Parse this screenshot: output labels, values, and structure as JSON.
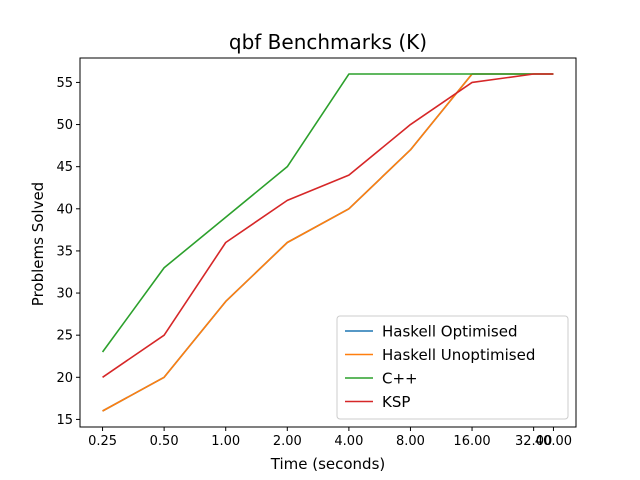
{
  "chart_data": {
    "type": "line",
    "title": "qbf Benchmarks (K)",
    "xlabel": "Time (seconds)",
    "ylabel": "Problems Solved",
    "x_scale": "log2",
    "x": [
      0.25,
      0.5,
      1.0,
      2.0,
      4.0,
      8.0,
      16.0,
      32.0,
      40.0
    ],
    "x_tick_labels": [
      "0.25",
      "0.50",
      "1.00",
      "2.00",
      "4.00",
      "8.00",
      "16.00",
      "32.00",
      "40.00"
    ],
    "y_ticks": [
      15,
      20,
      25,
      30,
      35,
      40,
      45,
      50,
      55
    ],
    "ylim": [
      14.1,
      57.9
    ],
    "grid": false,
    "legend_position": "lower-right",
    "series": [
      {
        "name": "Haskell Optimised",
        "color": "#1f77b4",
        "values": [
          16,
          20,
          29,
          36,
          40,
          47,
          56,
          56,
          56
        ]
      },
      {
        "name": "Haskell Unoptimised",
        "color": "#ff7f0e",
        "values": [
          16,
          20,
          29,
          36,
          40,
          47,
          56,
          56,
          56
        ]
      },
      {
        "name": "C++",
        "color": "#2ca02c",
        "values": [
          23,
          33,
          39,
          45,
          56,
          56,
          56,
          56,
          56
        ]
      },
      {
        "name": "KSP",
        "color": "#d62728",
        "values": [
          20,
          25,
          36,
          41,
          44,
          50,
          55,
          56,
          56
        ]
      }
    ]
  }
}
